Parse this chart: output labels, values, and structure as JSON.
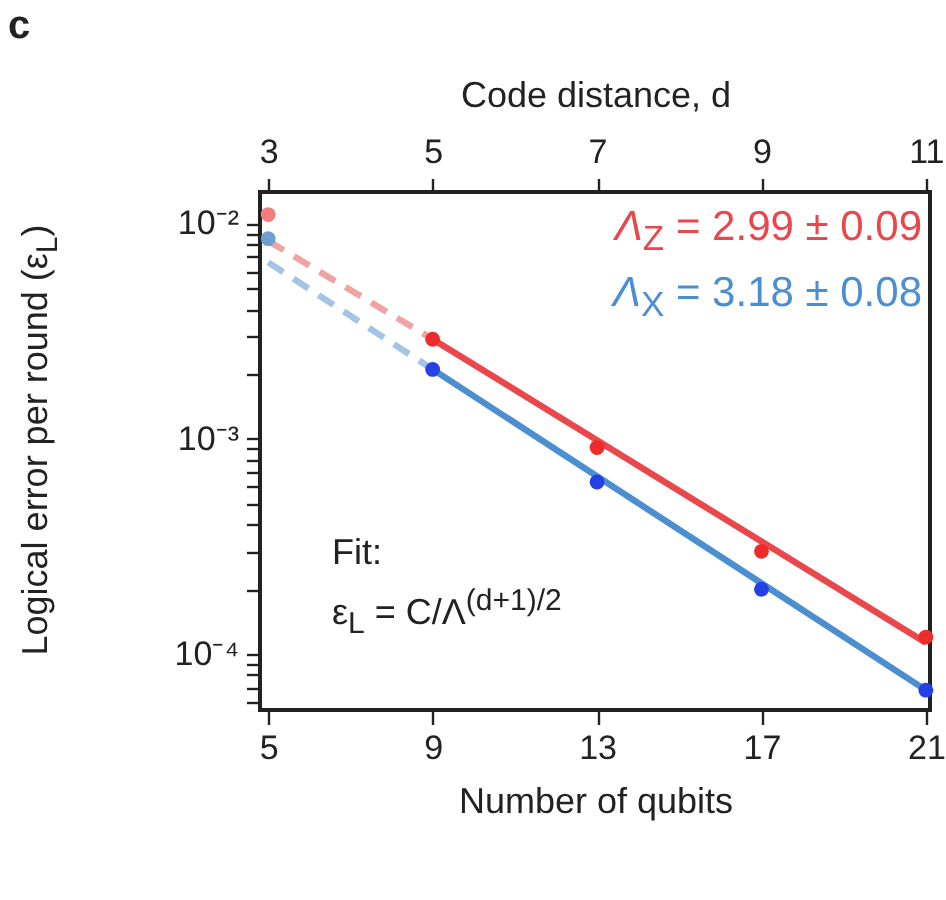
{
  "chart_data": {
    "type": "scatter",
    "xlabel": "Number of qubits",
    "x2label": "Code distance, d",
    "ylabel": "Logical error per round (ε$_{L}$)",
    "annotations": [
      "c",
      "Fit:",
      "ε$_{L}$ = C/Λ$^{(d+1)/2}$"
    ],
    "xlim": [
      4.8,
      21.1
    ],
    "xticks": [
      5,
      9,
      13,
      17,
      21
    ],
    "x2lim": [
      2.9,
      11.05
    ],
    "x2ticks": [
      3,
      5,
      7,
      9,
      11
    ],
    "ylim": [
      5.5e-05,
      0.014
    ],
    "log": true,
    "yticks": [
      {
        "value": 0.0001,
        "label": "10⁻⁴"
      },
      {
        "value": 0.001,
        "label": "10⁻³"
      },
      {
        "value": 0.01,
        "label": "10⁻²"
      },
      {
        "value": 6e-05,
        "label": null
      },
      {
        "value": 7e-05,
        "label": null
      },
      {
        "value": 8e-05,
        "label": null
      },
      {
        "value": 9e-05,
        "label": null
      },
      {
        "value": 0.0002,
        "label": null
      },
      {
        "value": 0.0003,
        "label": null
      },
      {
        "value": 0.0004,
        "label": null
      },
      {
        "value": 0.0005,
        "label": null
      },
      {
        "value": 0.0006,
        "label": null
      },
      {
        "value": 0.0007,
        "label": null
      },
      {
        "value": 0.0008,
        "label": null
      },
      {
        "value": 0.0009,
        "label": null
      },
      {
        "value": 0.002,
        "label": null
      },
      {
        "value": 0.003,
        "label": null
      },
      {
        "value": 0.004,
        "label": null
      },
      {
        "value": 0.005,
        "label": null
      },
      {
        "value": 0.006,
        "label": null
      },
      {
        "value": 0.007,
        "label": null
      },
      {
        "value": 0.008,
        "label": null
      },
      {
        "value": 0.009,
        "label": null
      }
    ],
    "grid": false,
    "legend": "top right",
    "series": [
      {
        "marker": "circle",
        "x": [
          5,
          9,
          13,
          17,
          21
        ],
        "values": [
          0.011,
          0.0029,
          0.00091,
          0.0003,
          0.00012
        ],
        "colors": [
          "#f27e7e",
          "#ee2b2b",
          "#ee2b2b",
          "#ee2b2b",
          "#ee2b2b"
        ]
      },
      {
        "marker": "circle",
        "x": [
          5,
          9,
          13,
          17,
          21
        ],
        "values": [
          0.0085,
          0.0021,
          0.00063,
          0.0002,
          6.8e-05
        ],
        "colors": [
          "#6f9fcf",
          "#2440e6",
          "#2440e6",
          "#2440e6",
          "#2440e6"
        ]
      },
      {
        "type": "line",
        "name": "Λ$_{Z}$ = 2.99 ± 0.09",
        "color": "#e9474c",
        "line_style": "solid",
        "x": [
          9,
          21
        ],
        "values": [
          0.0029,
          0.000113
        ]
      },
      {
        "type": "line",
        "color": "#f0a3a5",
        "line_style": "dashed",
        "x": [
          5,
          9
        ],
        "values": [
          0.0083,
          0.0029
        ]
      },
      {
        "type": "line",
        "name": "Λ$_{X}$ = 3.18 ± 0.08",
        "color": "#4b8fd0",
        "line_style": "solid",
        "x": [
          9,
          21
        ],
        "values": [
          0.0021,
          6.8e-05
        ]
      },
      {
        "type": "line",
        "color": "#a3c4e4",
        "line_style": "dashed",
        "x": [
          5,
          9
        ],
        "values": [
          0.0066,
          0.0021
        ]
      }
    ]
  }
}
